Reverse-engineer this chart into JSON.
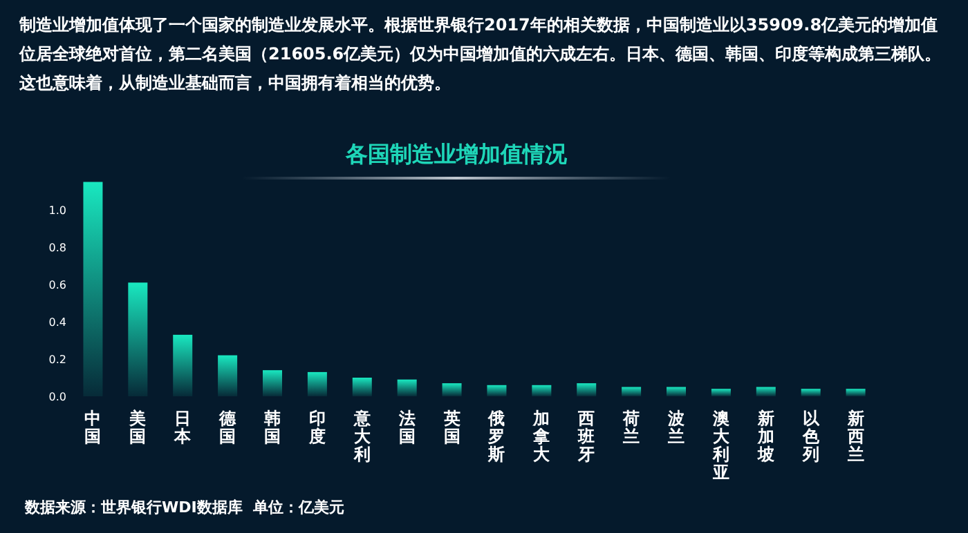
{
  "chart_data": {
    "type": "bar",
    "title": "各国制造业增加值情况",
    "categories": [
      "中国",
      "美国",
      "日本",
      "德国",
      "韩国",
      "印度",
      "意大利",
      "法国",
      "英国",
      "俄罗斯",
      "加拿大",
      "西班牙",
      "荷兰",
      "波兰",
      "澳大利亚",
      "新加坡",
      "以色列",
      "新西兰"
    ],
    "values": [
      1.15,
      0.61,
      0.33,
      0.22,
      0.14,
      0.13,
      0.1,
      0.09,
      0.07,
      0.06,
      0.06,
      0.07,
      0.05,
      0.05,
      0.04,
      0.05,
      0.04,
      0.04
    ],
    "color": "#19e8c0",
    "ylim": [
      0,
      1.15
    ],
    "yticks": [
      {
        "value": 0,
        "label": "0.0"
      },
      {
        "value": 0.2,
        "label": "0.2"
      },
      {
        "value": 0.4,
        "label": "0.4"
      },
      {
        "value": 0.6,
        "label": "0.6"
      },
      {
        "value": 0.8,
        "label": "0.8"
      },
      {
        "value": 1,
        "label": "1.0"
      }
    ],
    "annotations": [
      "制造业增加值体现了一个国家的制造业发展水平。根据世界银行2017年的相关数据，中国制造业以35909.8亿美元的增加值位居全球绝对首位，第二名美国（21605.6亿美元）仅为中国增加值的六成左右。日本、德国、韩国、印度等构成第三梯队。这也意味着，从制造业基础而言，中国拥有着相当的优势。",
      "数据来源：世界银行WDI数据库  单位：亿美元"
    ]
  }
}
